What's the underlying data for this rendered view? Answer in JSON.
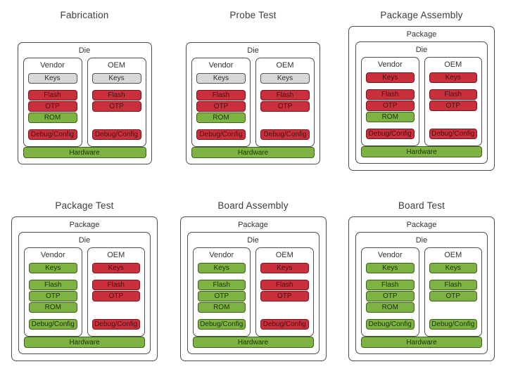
{
  "palette": {
    "gray": {
      "fill": "#d8d8d8",
      "border": "#545454",
      "text": "#2e2e2e"
    },
    "red": {
      "fill": "#c9303c",
      "border": "#7c141c",
      "text": "#451014"
    },
    "green": {
      "fill": "#7cb342",
      "border": "#3f611c",
      "text": "#1d3307"
    }
  },
  "stages": [
    {
      "title": "Fabrication",
      "package_label": null,
      "die_label": "Die",
      "columns": [
        {
          "label": "Vendor",
          "blocks": [
            {
              "label": "Keys",
              "color": "gray",
              "section": "keys"
            },
            {
              "label": "Flash",
              "color": "red",
              "section": "memory"
            },
            {
              "label": "OTP",
              "color": "red",
              "section": "memory"
            },
            {
              "label": "ROM",
              "color": "green",
              "section": "memory"
            },
            {
              "label": "Debug/Config",
              "color": "red",
              "section": "debug"
            }
          ]
        },
        {
          "label": "OEM",
          "blocks": [
            {
              "label": "Keys",
              "color": "gray",
              "section": "keys"
            },
            {
              "label": "Flash",
              "color": "red",
              "section": "memory"
            },
            {
              "label": "OTP",
              "color": "red",
              "section": "memory"
            },
            {
              "label": "Debug/Config",
              "color": "red",
              "section": "debug"
            }
          ]
        }
      ],
      "hardware": {
        "label": "Hardware",
        "color": "green"
      }
    },
    {
      "title": "Probe Test",
      "package_label": null,
      "die_label": "Die",
      "columns": [
        {
          "label": "Vendor",
          "blocks": [
            {
              "label": "Keys",
              "color": "gray",
              "section": "keys"
            },
            {
              "label": "Flash",
              "color": "red",
              "section": "memory"
            },
            {
              "label": "OTP",
              "color": "red",
              "section": "memory"
            },
            {
              "label": "ROM",
              "color": "green",
              "section": "memory"
            },
            {
              "label": "Debug/Config",
              "color": "red",
              "section": "debug"
            }
          ]
        },
        {
          "label": "OEM",
          "blocks": [
            {
              "label": "Keys",
              "color": "gray",
              "section": "keys"
            },
            {
              "label": "Flash",
              "color": "red",
              "section": "memory"
            },
            {
              "label": "OTP",
              "color": "red",
              "section": "memory"
            },
            {
              "label": "Debug/Config",
              "color": "red",
              "section": "debug"
            }
          ]
        }
      ],
      "hardware": {
        "label": "Hardware",
        "color": "green"
      }
    },
    {
      "title": "Package Assembly",
      "package_label": "Package",
      "die_label": "Die",
      "columns": [
        {
          "label": "Vendor",
          "blocks": [
            {
              "label": "Keys",
              "color": "red",
              "section": "keys"
            },
            {
              "label": "Flash",
              "color": "red",
              "section": "memory"
            },
            {
              "label": "OTP",
              "color": "red",
              "section": "memory"
            },
            {
              "label": "ROM",
              "color": "green",
              "section": "memory"
            },
            {
              "label": "Debug/Config",
              "color": "red",
              "section": "debug"
            }
          ]
        },
        {
          "label": "OEM",
          "blocks": [
            {
              "label": "Keys",
              "color": "red",
              "section": "keys"
            },
            {
              "label": "Flash",
              "color": "red",
              "section": "memory"
            },
            {
              "label": "OTP",
              "color": "red",
              "section": "memory"
            },
            {
              "label": "Debug/Config",
              "color": "red",
              "section": "debug"
            }
          ]
        }
      ],
      "hardware": {
        "label": "Hardware",
        "color": "green"
      }
    },
    {
      "title": "Package Test",
      "package_label": "Package",
      "die_label": "Die",
      "columns": [
        {
          "label": "Vendor",
          "blocks": [
            {
              "label": "Keys",
              "color": "green",
              "section": "keys"
            },
            {
              "label": "Flash",
              "color": "green",
              "section": "memory"
            },
            {
              "label": "OTP",
              "color": "green",
              "section": "memory"
            },
            {
              "label": "ROM",
              "color": "green",
              "section": "memory"
            },
            {
              "label": "Debug/Config",
              "color": "green",
              "section": "debug"
            }
          ]
        },
        {
          "label": "OEM",
          "blocks": [
            {
              "label": "Keys",
              "color": "red",
              "section": "keys"
            },
            {
              "label": "Flash",
              "color": "red",
              "section": "memory"
            },
            {
              "label": "OTP",
              "color": "red",
              "section": "memory"
            },
            {
              "label": "Debug/Config",
              "color": "red",
              "section": "debug"
            }
          ]
        }
      ],
      "hardware": {
        "label": "Hardware",
        "color": "green"
      }
    },
    {
      "title": "Board Assembly",
      "package_label": "Package",
      "die_label": "Die",
      "columns": [
        {
          "label": "Vendor",
          "blocks": [
            {
              "label": "Keys",
              "color": "green",
              "section": "keys"
            },
            {
              "label": "Flash",
              "color": "green",
              "section": "memory"
            },
            {
              "label": "OTP",
              "color": "green",
              "section": "memory"
            },
            {
              "label": "ROM",
              "color": "green",
              "section": "memory"
            },
            {
              "label": "Debug/Config",
              "color": "green",
              "section": "debug"
            }
          ]
        },
        {
          "label": "OEM",
          "blocks": [
            {
              "label": "Keys",
              "color": "red",
              "section": "keys"
            },
            {
              "label": "Flash",
              "color": "red",
              "section": "memory"
            },
            {
              "label": "OTP",
              "color": "red",
              "section": "memory"
            },
            {
              "label": "Debug/Config",
              "color": "red",
              "section": "debug"
            }
          ]
        }
      ],
      "hardware": {
        "label": "Hardware",
        "color": "green"
      }
    },
    {
      "title": "Board Test",
      "package_label": "Package",
      "die_label": "Die",
      "columns": [
        {
          "label": "Vendor",
          "blocks": [
            {
              "label": "Keys",
              "color": "green",
              "section": "keys"
            },
            {
              "label": "Flash",
              "color": "green",
              "section": "memory"
            },
            {
              "label": "OTP",
              "color": "green",
              "section": "memory"
            },
            {
              "label": "ROM",
              "color": "green",
              "section": "memory"
            },
            {
              "label": "Debug/Config",
              "color": "green",
              "section": "debug"
            }
          ]
        },
        {
          "label": "OEM",
          "blocks": [
            {
              "label": "Keys",
              "color": "green",
              "section": "keys"
            },
            {
              "label": "Flash",
              "color": "green",
              "section": "memory"
            },
            {
              "label": "OTP",
              "color": "green",
              "section": "memory"
            },
            {
              "label": "Debug/Config",
              "color": "green",
              "section": "debug"
            }
          ]
        }
      ],
      "hardware": {
        "label": "Hardware",
        "color": "green"
      }
    }
  ]
}
